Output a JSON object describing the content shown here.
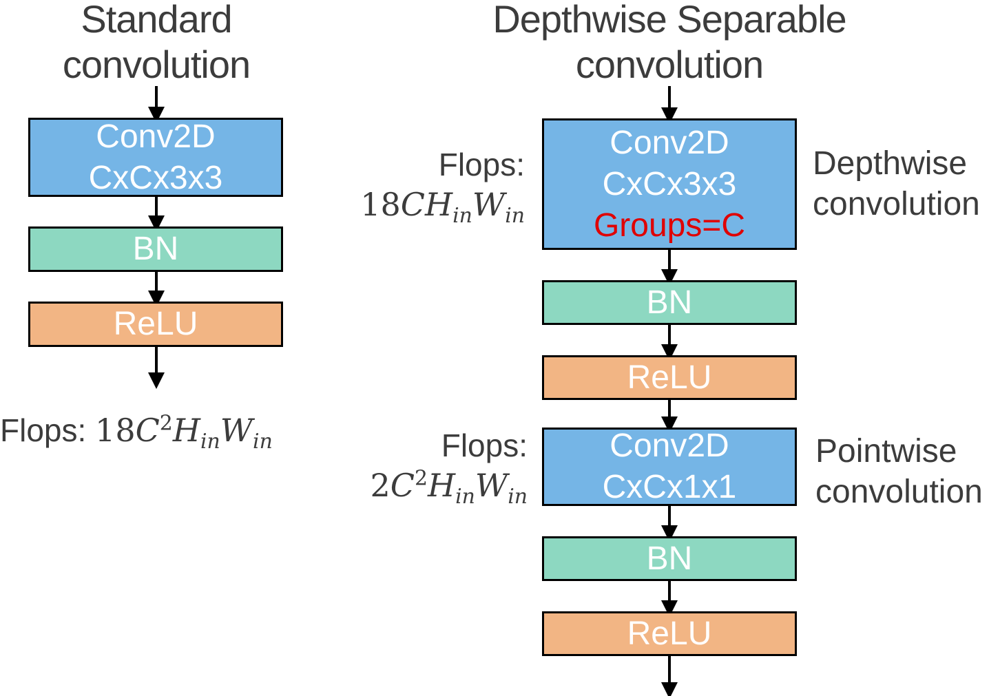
{
  "standard": {
    "title_line1": "Standard",
    "title_line2": "convolution",
    "conv": {
      "line1": "Conv2D",
      "line2": "CxCx3x3"
    },
    "bn": "BN",
    "relu": "ReLU",
    "flops_label": "Flops:",
    "flops_coef": "18",
    "flops_c": "C",
    "flops_c_exp": "2",
    "flops_h": "H",
    "flops_h_sub": "in",
    "flops_w": "W",
    "flops_w_sub": "in"
  },
  "separable": {
    "title_line1": "Depthwise Separable",
    "title_line2": "convolution",
    "depthwise": {
      "conv": {
        "line1": "Conv2D",
        "line2": "CxCx3x3",
        "line3": "Groups=C"
      },
      "bn": "BN",
      "relu": "ReLU",
      "side_line1": "Depthwise",
      "side_line2": "convolution",
      "flops_label": "Flops:",
      "flops_coef": "18",
      "flops_c": "C",
      "flops_h": "H",
      "flops_h_sub": "in",
      "flops_w": "W",
      "flops_w_sub": "in"
    },
    "pointwise": {
      "conv": {
        "line1": "Conv2D",
        "line2": "CxCx1x1"
      },
      "bn": "BN",
      "relu": "ReLU",
      "side_line1": "Pointwise",
      "side_line2": "convolution",
      "flops_label": "Flops:",
      "flops_coef": "2",
      "flops_c": "C",
      "flops_c_exp": "2",
      "flops_h": "H",
      "flops_h_sub": "in",
      "flops_w": "W",
      "flops_w_sub": "in"
    }
  },
  "colors": {
    "conv": "#75b5e6",
    "bn": "#8dd8c1",
    "relu": "#f2b584",
    "highlight": "#e00000"
  }
}
